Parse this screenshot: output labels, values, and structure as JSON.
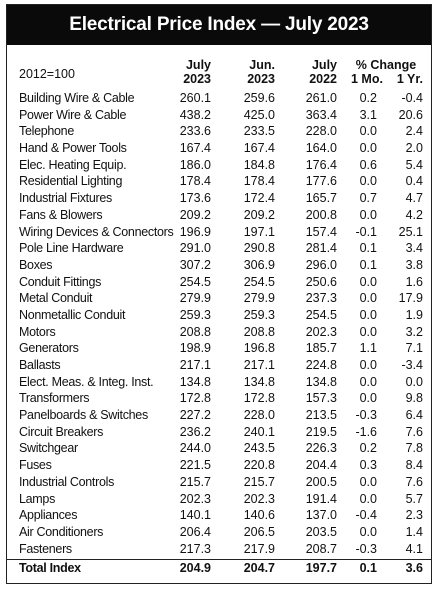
{
  "title": "Electrical Price Index — July 2023",
  "header": {
    "base": "2012=100",
    "col1": [
      "July",
      "2023"
    ],
    "col2": [
      "Jun.",
      "2023"
    ],
    "col3": [
      "July",
      "2022"
    ],
    "pct_title": "% Change",
    "pct_mo": "1 Mo.",
    "pct_yr": "1 Yr."
  },
  "rows": [
    [
      "Building Wire & Cable",
      "260.1",
      "259.6",
      "261.0",
      "0.2",
      "-0.4"
    ],
    [
      "Power Wire & Cable",
      "438.2",
      "425.0",
      "363.4",
      "3.1",
      "20.6"
    ],
    [
      "Telephone",
      "233.6",
      "233.5",
      "228.0",
      "0.0",
      "2.4"
    ],
    [
      "Hand & Power Tools",
      "167.4",
      "167.4",
      "164.0",
      "0.0",
      "2.0"
    ],
    [
      "Elec. Heating Equip.",
      "186.0",
      "184.8",
      "176.4",
      "0.6",
      "5.4"
    ],
    [
      "Residential Lighting",
      "178.4",
      "178.4",
      "177.6",
      "0.0",
      "0.4"
    ],
    [
      "Industrial Fixtures",
      "173.6",
      "172.4",
      "165.7",
      "0.7",
      "4.7"
    ],
    [
      "Fans & Blowers",
      "209.2",
      "209.2",
      "200.8",
      "0.0",
      "4.2"
    ],
    [
      "Wiring Devices & Connectors",
      "196.9",
      "197.1",
      "157.4",
      "-0.1",
      "25.1"
    ],
    [
      "Pole Line Hardware",
      "291.0",
      "290.8",
      "281.4",
      "0.1",
      "3.4"
    ],
    [
      "Boxes",
      "307.2",
      "306.9",
      "296.0",
      "0.1",
      "3.8"
    ],
    [
      "Conduit Fittings",
      "254.5",
      "254.5",
      "250.6",
      "0.0",
      "1.6"
    ],
    [
      "Metal Conduit",
      "279.9",
      "279.9",
      "237.3",
      "0.0",
      "17.9"
    ],
    [
      "Nonmetallic Conduit",
      "259.3",
      "259.3",
      "254.5",
      "0.0",
      "1.9"
    ],
    [
      "Motors",
      "208.8",
      "208.8",
      "202.3",
      "0.0",
      "3.2"
    ],
    [
      "Generators",
      "198.9",
      "196.8",
      "185.7",
      "1.1",
      "7.1"
    ],
    [
      "Ballasts",
      "217.1",
      "217.1",
      "224.8",
      "0.0",
      "-3.4"
    ],
    [
      "Elect. Meas. & Integ. Inst.",
      "134.8",
      "134.8",
      "134.8",
      "0.0",
      "0.0"
    ],
    [
      "Transformers",
      "172.8",
      "172.8",
      "157.3",
      "0.0",
      "9.8"
    ],
    [
      "Panelboards & Switches",
      "227.2",
      "228.0",
      "213.5",
      "-0.3",
      "6.4"
    ],
    [
      "Circuit Breakers",
      "236.2",
      "240.1",
      "219.5",
      "-1.6",
      "7.6"
    ],
    [
      "Switchgear",
      "244.0",
      "243.5",
      "226.3",
      "0.2",
      "7.8"
    ],
    [
      "Fuses",
      "221.5",
      "220.8",
      "204.4",
      "0.3",
      "8.4"
    ],
    [
      "Industrial Controls",
      "215.7",
      "215.7",
      "200.5",
      "0.0",
      "7.6"
    ],
    [
      "Lamps",
      "202.3",
      "202.3",
      "191.4",
      "0.0",
      "5.7"
    ],
    [
      "Appliances",
      "140.1",
      "140.6",
      "137.0",
      "-0.4",
      "2.3"
    ],
    [
      "Air Conditioners",
      "206.4",
      "206.5",
      "203.5",
      "0.0",
      "1.4"
    ],
    [
      "Fasteners",
      "217.3",
      "217.9",
      "208.7",
      "-0.3",
      "4.1"
    ]
  ],
  "total": [
    "Total Index",
    "204.9",
    "204.7",
    "197.7",
    "0.1",
    "3.6"
  ]
}
